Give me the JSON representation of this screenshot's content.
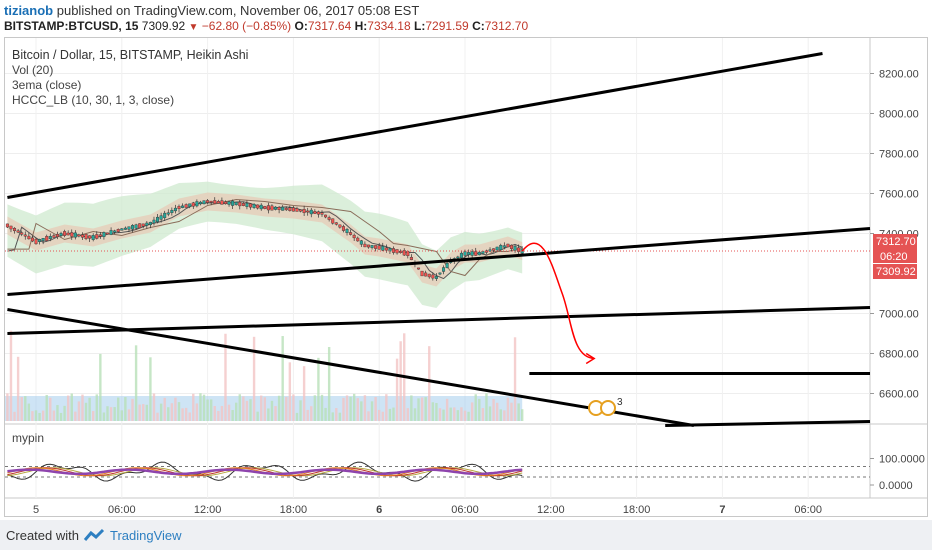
{
  "header": {
    "author": "tizianob",
    "published_text": "published on TradingView.com, November 06, 2017 05:08 EST",
    "symbol": "BITSTAMP:BTCUSD, 15",
    "last": "7309.92",
    "change": "−62.80 (−0.85%)",
    "o_label": "O:",
    "o_value": "7317.64",
    "h_label": "H:",
    "h_value": "7334.18",
    "l_label": "L:",
    "l_value": "7291.59",
    "c_label": "C:",
    "c_value": "7312.70"
  },
  "legend": {
    "title": "Bitcoin / Dollar, 15, BITSTAMP, Heikin Ashi",
    "vol": "Vol (20)",
    "ema": "3ema (close)",
    "hccc": "HCCC_LB (10, 30, 1, 3, close)"
  },
  "indicator": {
    "title": "mypin"
  },
  "price_badges": {
    "close": "7312.70",
    "countdown": "06:20",
    "last": "7309.92"
  },
  "event_marker": {
    "count": "3"
  },
  "footer": {
    "created": "Created with",
    "brand": "TradingView"
  },
  "colors": {
    "up": "#26a69a",
    "down": "#ef5350",
    "band": "#cfe9cf",
    "line": "#000000",
    "badge": "#e55353",
    "arrow": "#ff0000",
    "vol_bg": "#9ec9ec"
  },
  "chart_data": {
    "type": "line",
    "title": "Bitcoin / Dollar, 15, BITSTAMP, Heikin Ashi",
    "y_axis": {
      "ticks": [
        8200,
        8000,
        7800,
        7600,
        7400,
        7000,
        6800,
        6600
      ],
      "tick_labels": [
        "8200.00",
        "8000.00",
        "7800.00",
        "7600.00",
        "7400.00",
        "7000.00",
        "6800.00",
        "6600.00"
      ],
      "ylim": [
        6450,
        8300
      ]
    },
    "x_axis": {
      "tick_labels": [
        "5",
        "06:00",
        "12:00",
        "18:00",
        "6",
        "06:00",
        "12:00",
        "18:00",
        "7",
        "06:00"
      ],
      "bold": [
        false,
        false,
        false,
        false,
        true,
        false,
        false,
        false,
        true,
        false
      ],
      "x_hours": [
        0,
        6,
        12,
        18,
        24,
        30,
        36,
        42,
        48,
        54
      ]
    },
    "price_series": {
      "name": "BTCUSD",
      "x_hours": [
        -2,
        0,
        2,
        4,
        6,
        8,
        10,
        12,
        14,
        16,
        18,
        20,
        22,
        23,
        24,
        26,
        27,
        28,
        29,
        30,
        31,
        32,
        33,
        34
      ],
      "y": [
        7440,
        7360,
        7400,
        7380,
        7420,
        7450,
        7530,
        7560,
        7550,
        7530,
        7520,
        7500,
        7400,
        7340,
        7330,
        7300,
        7200,
        7180,
        7260,
        7300,
        7300,
        7320,
        7340,
        7312
      ]
    },
    "trendlines": [
      {
        "x_hours": [
          -2,
          55
        ],
        "y": [
          7580,
          8300
        ]
      },
      {
        "x_hours": [
          -2,
          59
        ],
        "y": [
          7095,
          7425
        ]
      },
      {
        "x_hours": [
          -2,
          59
        ],
        "y": [
          6900,
          7030
        ]
      },
      {
        "x_hours": [
          -2,
          46
        ],
        "y": [
          7020,
          6440
        ]
      },
      {
        "x_hours": [
          44,
          59
        ],
        "y": [
          6440,
          6460
        ]
      },
      {
        "x_hours": [
          34.5,
          59
        ],
        "y": [
          6700,
          6700
        ]
      }
    ],
    "current_price": 7312.7,
    "osc_axis": {
      "ticks": [
        100,
        0
      ],
      "tick_labels": [
        "100.0000",
        "0.0000"
      ],
      "ylim": [
        -40,
        160
      ]
    },
    "osc_levels": [
      70,
      30
    ]
  }
}
